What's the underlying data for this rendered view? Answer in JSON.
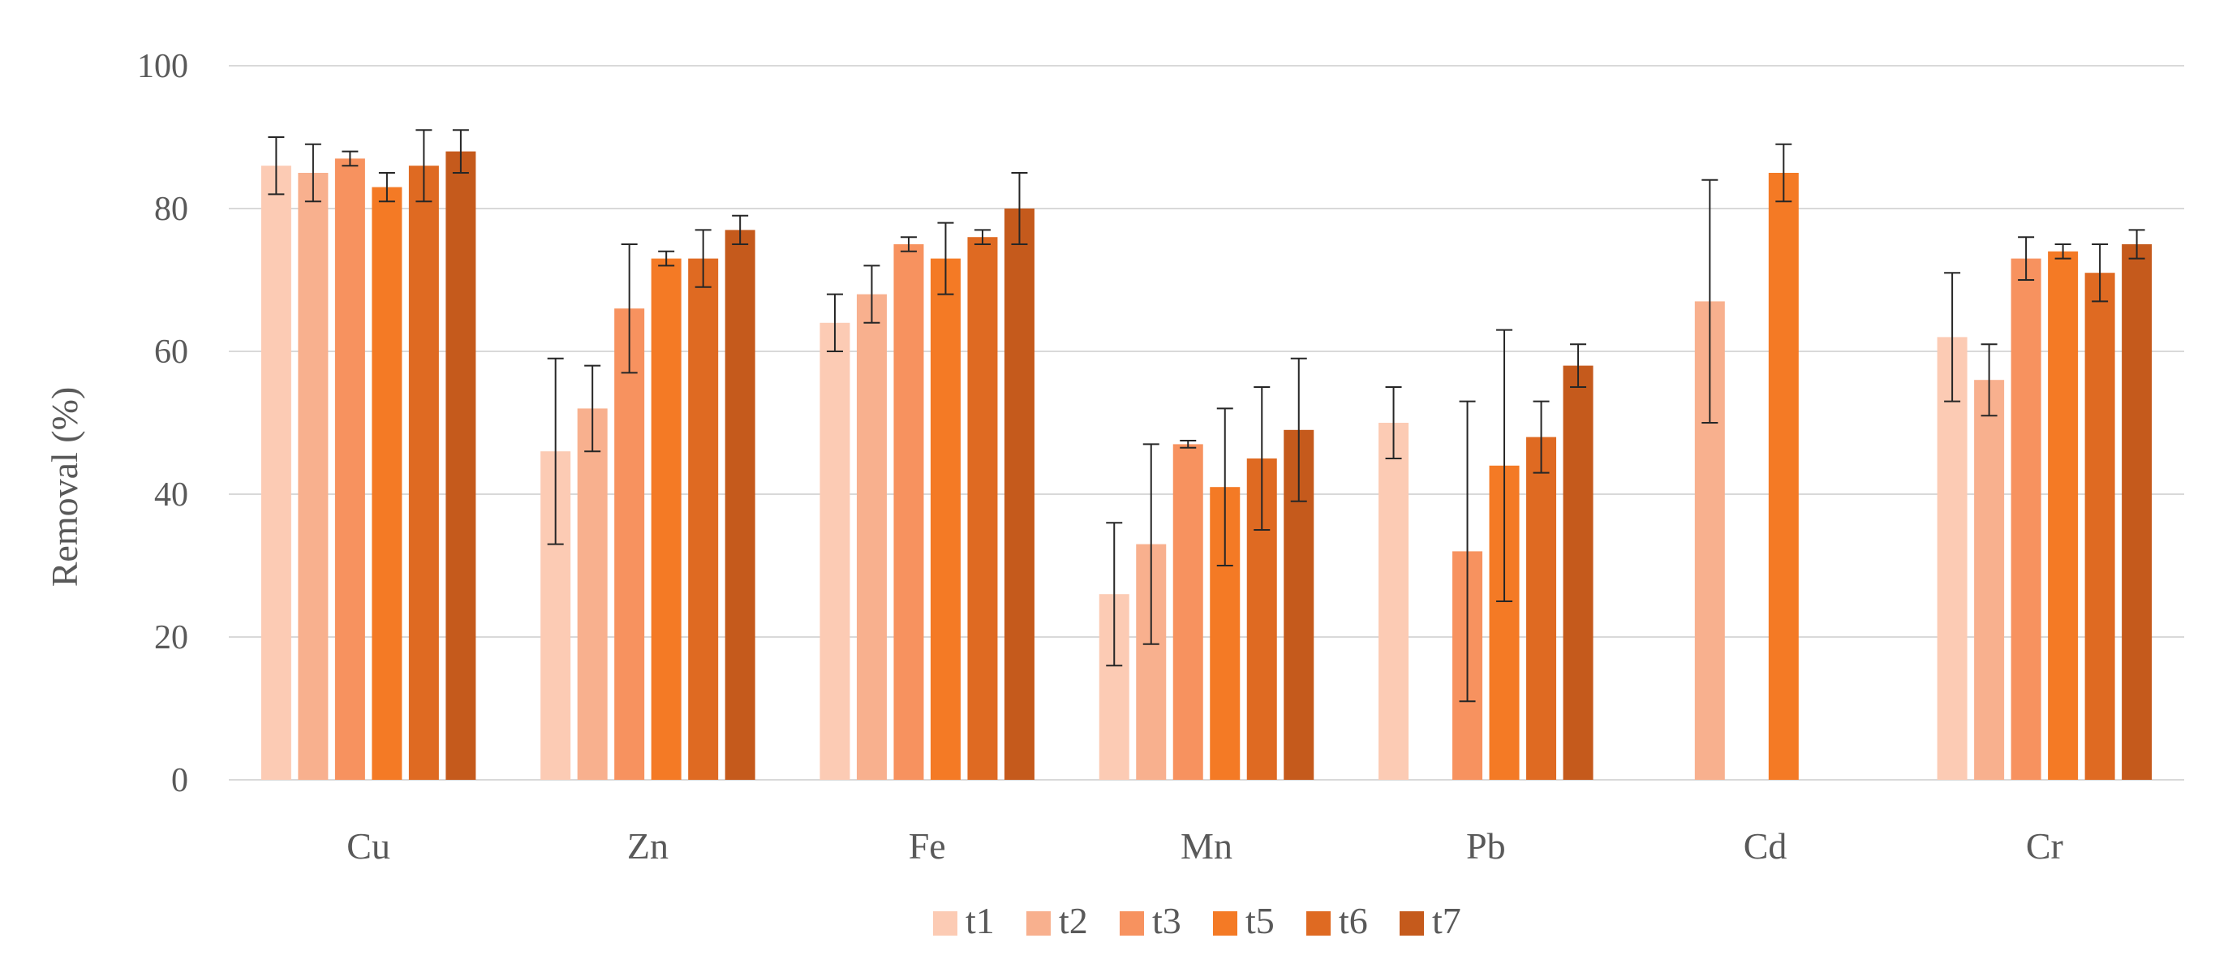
{
  "chart_data": {
    "type": "bar",
    "ylabel": "Removal (%)",
    "ylim": [
      0,
      100
    ],
    "yticks": [
      0,
      20,
      40,
      60,
      80,
      100
    ],
    "grid": true,
    "legend_position": "bottom",
    "categories": [
      "Cu",
      "Zn",
      "Fe",
      "Mn",
      "Pb",
      "Cd",
      "Cr"
    ],
    "series": [
      {
        "name": "t1",
        "color": "#fccbb4",
        "values": [
          86,
          46,
          64,
          26,
          50,
          null,
          62
        ],
        "errors": [
          4,
          13,
          4,
          10,
          5,
          null,
          9
        ]
      },
      {
        "name": "t2",
        "color": "#f8b08e",
        "values": [
          85,
          52,
          68,
          33,
          null,
          67,
          56
        ],
        "errors": [
          4,
          6,
          4,
          14,
          null,
          17,
          5
        ]
      },
      {
        "name": "t3",
        "color": "#f7925f",
        "values": [
          87,
          66,
          75,
          47,
          32,
          null,
          73
        ],
        "errors": [
          1,
          9,
          1,
          0.5,
          21,
          null,
          3
        ]
      },
      {
        "name": "t5",
        "color": "#f47a25",
        "values": [
          83,
          73,
          73,
          41,
          44,
          85,
          74
        ],
        "errors": [
          2,
          1,
          5,
          11,
          19,
          4,
          1
        ]
      },
      {
        "name": "t6",
        "color": "#df6a22",
        "values": [
          86,
          73,
          76,
          45,
          48,
          null,
          71
        ],
        "errors": [
          5,
          4,
          1,
          10,
          5,
          null,
          4
        ]
      },
      {
        "name": "t7",
        "color": "#c55a1c",
        "values": [
          88,
          77,
          80,
          49,
          58,
          null,
          75
        ],
        "errors": [
          3,
          2,
          5,
          10,
          3,
          null,
          2
        ]
      }
    ]
  }
}
